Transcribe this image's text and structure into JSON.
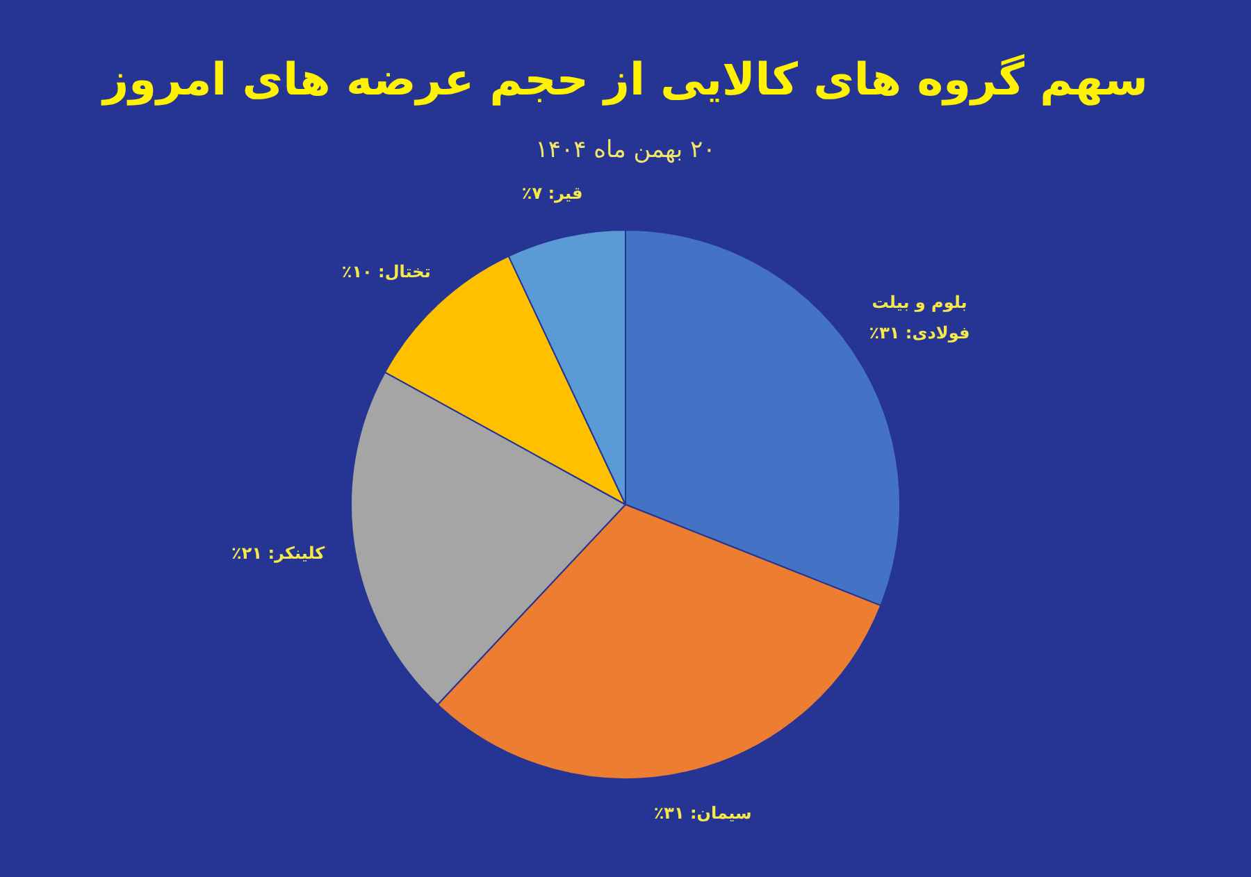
{
  "chart_data": {
    "type": "pie",
    "title": "سهم گروه های کالایی از حجم عرضه های امروز",
    "subtitle": "۲۰ بهمن ماه ۱۴۰۴",
    "categories": [
      "بلوم و بیلت فولادی",
      "سیمان",
      "کلینکر",
      "تختال",
      "قیر"
    ],
    "values": [
      31,
      31,
      21,
      10,
      7
    ],
    "value_labels": [
      "۳۱٪",
      "۳۱٪",
      "۲۱٪",
      "۱۰٪",
      "۷٪"
    ],
    "colors": [
      "#4472c4",
      "#ed7d31",
      "#a5a5a5",
      "#ffc000",
      "#5b9bd5"
    ],
    "legend": false
  }
}
